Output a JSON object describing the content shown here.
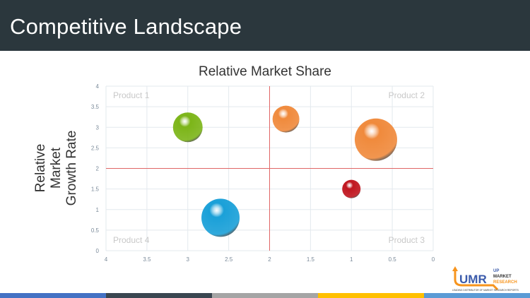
{
  "header": {
    "title": "Competitive Landscape"
  },
  "chart_data": {
    "type": "bubble",
    "title": "Relative Market Share",
    "xlabel": "",
    "ylabel": "Relative Market Growth Rate",
    "xlim": [
      4,
      0
    ],
    "x_reversed": true,
    "ylim": [
      0,
      4
    ],
    "xticks": [
      "4",
      "3.5",
      "3",
      "2.5",
      "2",
      "1.5",
      "1",
      "0.5",
      "0"
    ],
    "yticks": [
      "0",
      "0.5",
      "1",
      "1.5",
      "2",
      "2.5",
      "3",
      "3.5",
      "4"
    ],
    "grid": true,
    "reference_lines": {
      "x": 2,
      "y": 2,
      "color": "#e06666"
    },
    "quadrant_labels": [
      "Product 1",
      "Product 2",
      "Product 3",
      "Product 4"
    ],
    "points": [
      {
        "x": 3.0,
        "y": 3.0,
        "size": 4.4,
        "color": "#7cb518"
      },
      {
        "x": 1.8,
        "y": 3.2,
        "size": 3.6,
        "color": "#f08a3c"
      },
      {
        "x": 0.7,
        "y": 2.7,
        "size": 9.0,
        "color": "#f08a3c"
      },
      {
        "x": 1.0,
        "y": 1.5,
        "size": 1.7,
        "color": "#c0161f"
      },
      {
        "x": 2.6,
        "y": 0.8,
        "size": 7.3,
        "color": "#1aa0d8"
      }
    ]
  },
  "footer": {
    "colors": [
      "#4472c4",
      "#3a4650",
      "#a5a5a5",
      "#ffc000",
      "#5b9bd5"
    ]
  },
  "logo": {
    "text": "UMR",
    "sub1": "UP",
    "sub2": "MARKET",
    "sub3": "RESEARCH",
    "tagline": "LEADING DISTRIBUTOR OF MARKET RESEARCH REPORTS"
  }
}
